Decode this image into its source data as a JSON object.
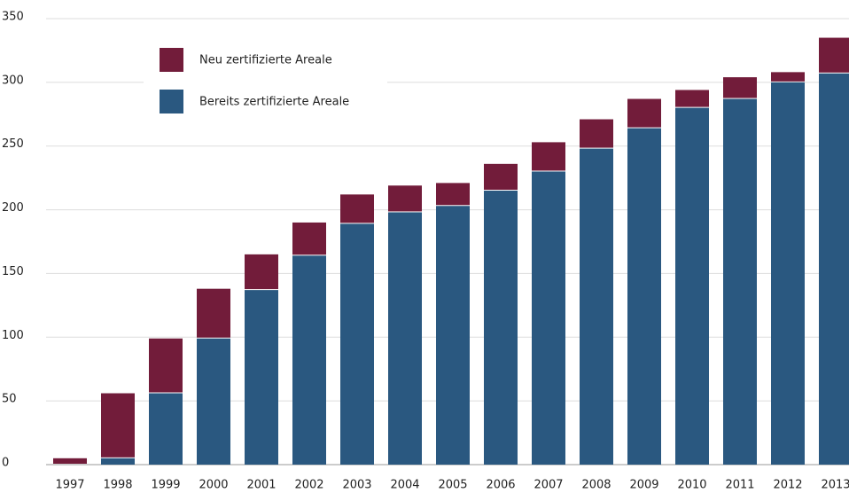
{
  "chart_data": {
    "type": "stacked_bar",
    "categories": [
      "1997",
      "1998",
      "1999",
      "2000",
      "2001",
      "2002",
      "2003",
      "2004",
      "2005",
      "2006",
      "2007",
      "2008",
      "2009",
      "2010",
      "2011",
      "2012",
      "2013"
    ],
    "series": [
      {
        "name": "Bereits zertifizierte Areale",
        "color": "#2a5880",
        "values": [
          0,
          5,
          56,
          99,
          137,
          164,
          189,
          198,
          203,
          215,
          230,
          248,
          264,
          280,
          287,
          300,
          307
        ]
      },
      {
        "name": "Neu zertifizierte Areale",
        "color": "#721c3a",
        "values": [
          5,
          51,
          43,
          39,
          28,
          26,
          23,
          21,
          18,
          21,
          23,
          23,
          23,
          14,
          17,
          8,
          28
        ]
      }
    ],
    "ylim": [
      0,
      350
    ],
    "yticks": [
      0,
      50,
      100,
      150,
      200,
      250,
      300,
      350
    ],
    "grid": true
  }
}
